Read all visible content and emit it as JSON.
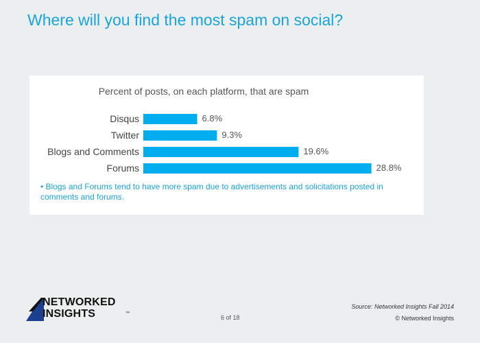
{
  "slide": {
    "title": "Where will you find the most spam on social?",
    "note": "• Blogs and Forums tend to have more spam due to advertisements and solicitations posted in comments and forums.",
    "page": "6 of 18",
    "source": "Source: Networked Insights Fall 2014",
    "copyright": "© Networked Insights"
  },
  "logo": {
    "line1": "NETWORKED",
    "line2": "INSIGHTS",
    "mark": "™"
  },
  "colors": {
    "accent": "#1aa3dd",
    "bar": "#00aeef",
    "background": "#eceff0"
  },
  "chart_data": {
    "type": "bar",
    "orientation": "horizontal",
    "title": "Percent of posts, on each platform, that are spam",
    "categories": [
      "Disqus",
      "Twitter",
      "Blogs and Comments",
      "Forums"
    ],
    "values": [
      6.8,
      9.3,
      19.6,
      28.8
    ],
    "value_labels": [
      "6.8%",
      "9.3%",
      "19.6%",
      "28.8%"
    ],
    "unit": "%",
    "xlim": [
      0,
      30
    ],
    "xlabel": "",
    "ylabel": "",
    "grid": false
  }
}
